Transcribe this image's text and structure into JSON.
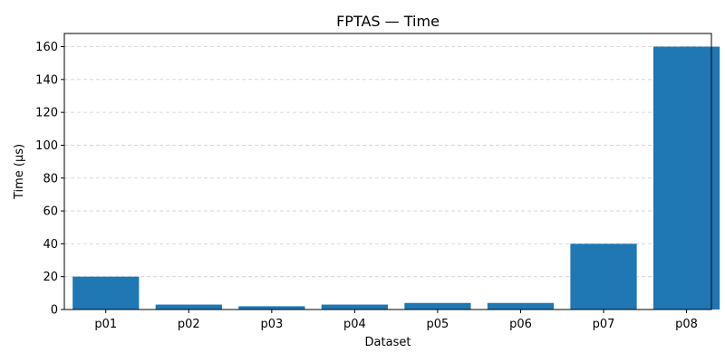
{
  "chart_data": {
    "type": "bar",
    "title": "FPTAS — Time",
    "xlabel": "Dataset",
    "ylabel": "Time (µs)",
    "categories": [
      "p01",
      "p02",
      "p03",
      "p04",
      "p05",
      "p06",
      "p07",
      "p08"
    ],
    "values": [
      20,
      3,
      2,
      3,
      4,
      4,
      40,
      160
    ],
    "ylim": [
      0,
      168
    ],
    "yticks": [
      0,
      20,
      40,
      60,
      80,
      100,
      120,
      140,
      160
    ],
    "grid": "y-dashed",
    "bar_color": "#1f77b4"
  }
}
